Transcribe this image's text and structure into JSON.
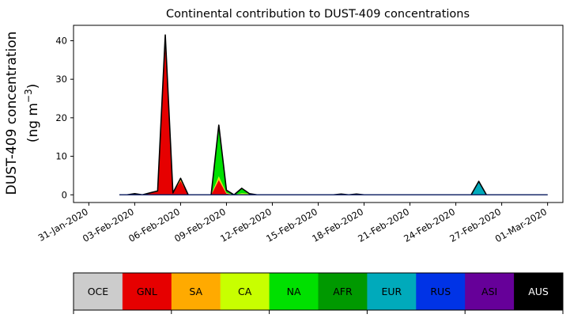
{
  "chart_data": {
    "type": "area",
    "title": "Continental contribution to DUST-409 concentrations",
    "ylabel_line1": "DUST-409 concentration",
    "ylabel_line2_base": "(ng m",
    "ylabel_line2_sup": "−3",
    "ylabel_line2_end": ")",
    "ylim": [
      -2,
      44
    ],
    "yticks": [
      0,
      10,
      20,
      30,
      40
    ],
    "xlim": [
      "2020-01-30",
      "2020-03-02"
    ],
    "xtick_labels": [
      "31-Jan-2020",
      "03-Feb-2020",
      "06-Feb-2020",
      "09-Feb-2020",
      "12-Feb-2020",
      "15-Feb-2020",
      "18-Feb-2020",
      "21-Feb-2020",
      "24-Feb-2020",
      "27-Feb-2020",
      "01-Mar-2020"
    ],
    "xtick_dates": [
      "2020-01-31",
      "2020-02-03",
      "2020-02-06",
      "2020-02-09",
      "2020-02-12",
      "2020-02-15",
      "2020-02-18",
      "2020-02-21",
      "2020-02-24",
      "2020-02-27",
      "2020-03-01"
    ],
    "x": [
      "2020-02-02",
      "2020-02-02 12:00",
      "2020-02-03",
      "2020-02-03 12:00",
      "2020-02-04",
      "2020-02-04 12:00",
      "2020-02-05",
      "2020-02-05 12:00",
      "2020-02-06",
      "2020-02-06 12:00",
      "2020-02-07",
      "2020-02-07 12:00",
      "2020-02-08",
      "2020-02-08 12:00",
      "2020-02-09",
      "2020-02-09 12:00",
      "2020-02-10",
      "2020-02-10 12:00",
      "2020-02-11",
      "2020-02-11 12:00",
      "2020-02-12",
      "2020-02-12 12:00",
      "2020-02-13",
      "2020-02-13 12:00",
      "2020-02-14",
      "2020-02-14 12:00",
      "2020-02-15",
      "2020-02-15 12:00",
      "2020-02-16",
      "2020-02-16 12:00",
      "2020-02-17",
      "2020-02-17 12:00",
      "2020-02-18",
      "2020-02-18 12:00",
      "2020-02-19",
      "2020-02-19 12:00",
      "2020-02-20",
      "2020-02-20 12:00",
      "2020-02-21",
      "2020-02-21 12:00",
      "2020-02-22",
      "2020-02-22 12:00",
      "2020-02-23",
      "2020-02-23 12:00",
      "2020-02-24",
      "2020-02-24 12:00",
      "2020-02-25",
      "2020-02-25 12:00",
      "2020-02-26",
      "2020-02-26 12:00",
      "2020-02-27",
      "2020-02-27 12:00",
      "2020-02-28",
      "2020-02-28 12:00",
      "2020-02-29",
      "2020-02-29 12:00",
      "2020-03-01"
    ],
    "series": [
      {
        "name": "OCE",
        "color": "#cccccc",
        "values": [
          0,
          0,
          0,
          0,
          0,
          0,
          0,
          0,
          0,
          0,
          0,
          0,
          0,
          0,
          0,
          0,
          0,
          0,
          0,
          0,
          0,
          0,
          0,
          0,
          0,
          0,
          0,
          0,
          0,
          0,
          0,
          0,
          0,
          0,
          0,
          0,
          0,
          0,
          0,
          0,
          0,
          0,
          0,
          0,
          0,
          0,
          0,
          0,
          0,
          0,
          0,
          0,
          0,
          0,
          0,
          0,
          0
        ]
      },
      {
        "name": "GNL",
        "color": "#e60000",
        "values": [
          0,
          0,
          0,
          0,
          0.5,
          0.8,
          39,
          0.5,
          3.6,
          0,
          0,
          0,
          0,
          3.8,
          0.3,
          0,
          0.2,
          0,
          0,
          0,
          0,
          0,
          0,
          0,
          0,
          0,
          0,
          0,
          0,
          0.2,
          0,
          0,
          0,
          0,
          0,
          0,
          0,
          0,
          0,
          0,
          0,
          0,
          0,
          0,
          0,
          0,
          0,
          0,
          0,
          0,
          0,
          0,
          0,
          0,
          0,
          0,
          0
        ]
      },
      {
        "name": "SA",
        "color": "#ffaa00",
        "values": [
          0,
          0,
          0,
          0,
          0,
          0,
          0.3,
          0,
          0.2,
          0,
          0,
          0,
          0,
          0.5,
          0.1,
          0,
          0,
          0,
          0,
          0,
          0,
          0,
          0,
          0,
          0,
          0,
          0,
          0,
          0,
          0,
          0,
          0,
          0,
          0,
          0,
          0,
          0,
          0,
          0,
          0,
          0,
          0,
          0,
          0,
          0,
          0,
          0,
          0,
          0,
          0,
          0,
          0,
          0,
          0,
          0,
          0,
          0
        ]
      },
      {
        "name": "CA",
        "color": "#c8ff00",
        "values": [
          0,
          0,
          0.2,
          0,
          0,
          0,
          0.4,
          0,
          0.2,
          0,
          0,
          0,
          0,
          0.5,
          0.1,
          0,
          0.2,
          0.3,
          0,
          0,
          0,
          0,
          0,
          0,
          0,
          0,
          0,
          0,
          0,
          0,
          0,
          0.2,
          0,
          0,
          0,
          0,
          0,
          0,
          0,
          0,
          0,
          0,
          0,
          0,
          0,
          0,
          0,
          0,
          0,
          0,
          0,
          0,
          0,
          0,
          0,
          0,
          0
        ]
      },
      {
        "name": "NA",
        "color": "#00e000",
        "values": [
          0,
          0,
          0.1,
          0,
          0,
          0.2,
          1,
          0,
          0.3,
          0,
          0,
          0,
          0,
          12.5,
          0.4,
          0,
          1.3,
          0,
          0,
          0,
          0,
          0,
          0,
          0,
          0,
          0,
          0,
          0,
          0,
          0,
          0,
          0,
          0,
          0,
          0,
          0,
          0,
          0,
          0,
          0,
          0,
          0,
          0,
          0,
          0,
          0,
          0,
          0,
          0,
          0,
          0,
          0,
          0,
          0,
          0,
          0,
          0
        ]
      },
      {
        "name": "AFR",
        "color": "#009900",
        "values": [
          0,
          0,
          0,
          0,
          0,
          0,
          0.3,
          0,
          0,
          0,
          0,
          0,
          0,
          0.3,
          0.2,
          0,
          0,
          0,
          0,
          0,
          0,
          0,
          0,
          0,
          0,
          0,
          0,
          0,
          0,
          0,
          0,
          0,
          0,
          0,
          0,
          0,
          0,
          0,
          0,
          0,
          0,
          0,
          0,
          0,
          0,
          0,
          0,
          0,
          0,
          0,
          0,
          0,
          0,
          0,
          0,
          0,
          0
        ]
      },
      {
        "name": "EUR",
        "color": "#00aabb",
        "values": [
          0,
          0,
          0,
          0,
          0,
          0,
          0,
          0,
          0,
          0,
          0,
          0,
          0,
          0,
          0,
          0,
          0,
          0,
          0,
          0,
          0,
          0,
          0,
          0,
          0,
          0,
          0,
          0,
          0,
          0,
          0,
          0,
          0,
          0,
          0,
          0,
          0,
          0,
          0,
          0,
          0,
          0,
          0,
          0,
          0,
          0,
          0,
          3.5,
          0,
          0,
          0,
          0,
          0,
          0,
          0,
          0,
          0
        ]
      },
      {
        "name": "RUS",
        "color": "#0033e6",
        "values": [
          0,
          0,
          0,
          0,
          0,
          0,
          0,
          0,
          0,
          0,
          0,
          0,
          0,
          0,
          0,
          0,
          0,
          0,
          0,
          0,
          0,
          0,
          0,
          0,
          0,
          0,
          0,
          0,
          0,
          0,
          0,
          0,
          0,
          0,
          0,
          0,
          0,
          0,
          0,
          0,
          0,
          0,
          0,
          0,
          0,
          0,
          0,
          0,
          0,
          0,
          0,
          0,
          0,
          0,
          0,
          0,
          0
        ]
      },
      {
        "name": "ASI",
        "color": "#660099",
        "values": [
          0,
          0,
          0,
          0,
          0,
          0,
          0,
          0,
          0,
          0,
          0,
          0,
          0,
          0,
          0,
          0,
          0,
          0,
          0,
          0,
          0,
          0,
          0,
          0,
          0,
          0,
          0,
          0,
          0,
          0,
          0,
          0,
          0,
          0,
          0,
          0,
          0,
          0,
          0,
          0,
          0,
          0,
          0,
          0,
          0,
          0,
          0,
          0,
          0,
          0,
          0,
          0,
          0,
          0,
          0,
          0,
          0
        ]
      },
      {
        "name": "AUS",
        "color": "#000000",
        "values": [
          0,
          0,
          0,
          0,
          0,
          0,
          0.5,
          0,
          0,
          0,
          0,
          0,
          0,
          0.5,
          0.1,
          0,
          0,
          0,
          0,
          0,
          0,
          0,
          0,
          0,
          0,
          0,
          0,
          0,
          0,
          0,
          0,
          0,
          0,
          0,
          0,
          0,
          0,
          0,
          0,
          0,
          0,
          0,
          0,
          0,
          0,
          0,
          0,
          0,
          0,
          0,
          0,
          0,
          0,
          0,
          0,
          0,
          0
        ]
      }
    ],
    "legend": {
      "items": [
        {
          "label": "OCE",
          "color": "#cccccc",
          "text_color": "#000000"
        },
        {
          "label": "GNL",
          "color": "#e60000",
          "text_color": "#000000"
        },
        {
          "label": "SA",
          "color": "#ffaa00",
          "text_color": "#000000"
        },
        {
          "label": "CA",
          "color": "#c8ff00",
          "text_color": "#000000"
        },
        {
          "label": "NA",
          "color": "#00e000",
          "text_color": "#000000"
        },
        {
          "label": "AFR",
          "color": "#009900",
          "text_color": "#000000"
        },
        {
          "label": "EUR",
          "color": "#00aabb",
          "text_color": "#000000"
        },
        {
          "label": "RUS",
          "color": "#0033e6",
          "text_color": "#000000"
        },
        {
          "label": "ASI",
          "color": "#660099",
          "text_color": "#000000"
        },
        {
          "label": "AUS",
          "color": "#000000",
          "text_color": "#ffffff"
        }
      ]
    }
  }
}
